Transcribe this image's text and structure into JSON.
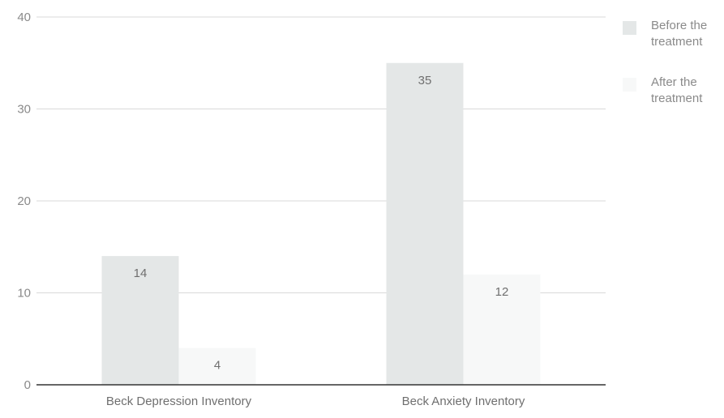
{
  "chart_data": {
    "type": "bar",
    "categories": [
      "Beck Depression Inventory",
      "Beck Anxiety Inventory"
    ],
    "series": [
      {
        "name": "Before the treatment",
        "values": [
          14,
          35
        ],
        "color": "#e4e7e7"
      },
      {
        "name": "After the treatment",
        "values": [
          4,
          12
        ],
        "color": "#f7f8f8"
      }
    ],
    "ylim": [
      0,
      40
    ],
    "yticks": [
      0,
      10,
      20,
      30,
      40
    ],
    "data_labels": true,
    "grid": true,
    "legend_position": "right",
    "title": "",
    "xlabel": "",
    "ylabel": ""
  }
}
